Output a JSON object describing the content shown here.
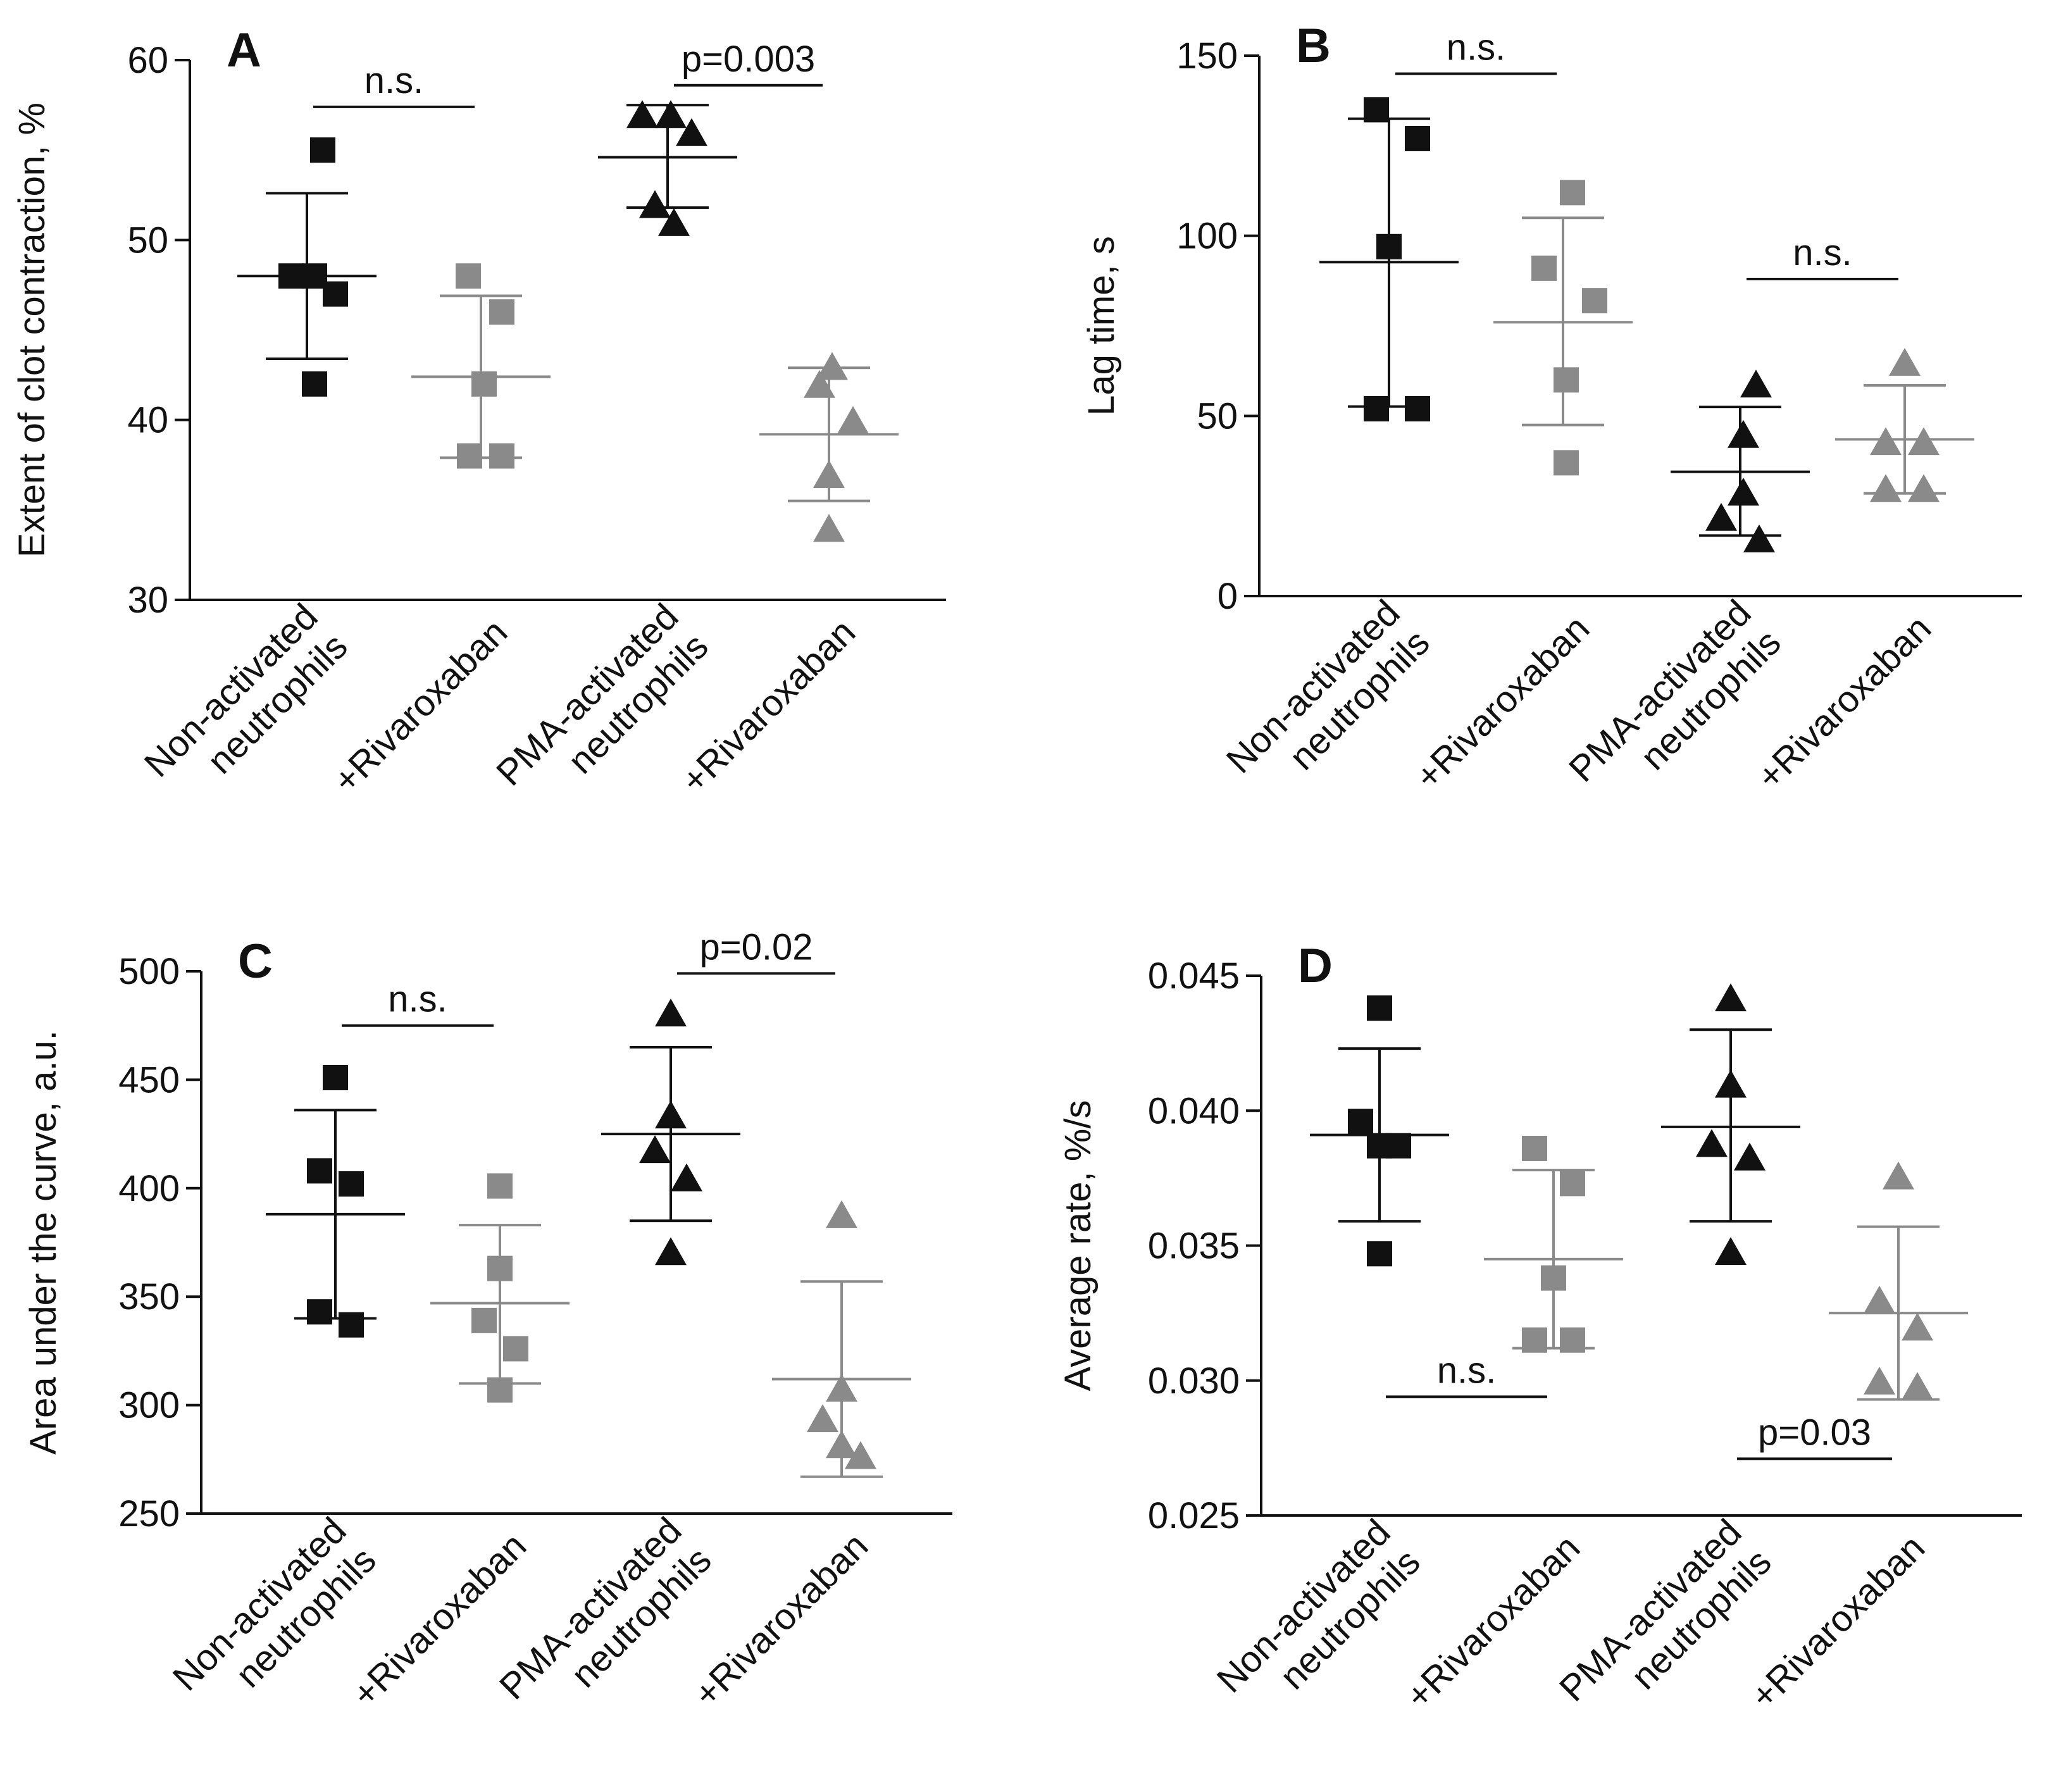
{
  "colors": {
    "black": "#111111",
    "gray": "#8a8a8a"
  },
  "chart_data": [
    {
      "type": "scatter",
      "panel_label": "A",
      "ylabel": "Extent of clot contraction, %",
      "ylim": [
        30,
        60
      ],
      "yticks": [
        "30",
        "40",
        "50",
        "60"
      ],
      "categories": [
        {
          "lines": [
            "Non-activated",
            "neutrophils"
          ],
          "color": "black",
          "marker": "square"
        },
        {
          "lines": [
            "+Rivaroxaban"
          ],
          "color": "gray",
          "marker": "square"
        },
        {
          "lines": [
            "PMA-activated",
            "neutrophils"
          ],
          "color": "black",
          "marker": "triangle"
        },
        {
          "lines": [
            "+Rivaroxaban"
          ],
          "color": "gray",
          "marker": "triangle"
        }
      ],
      "series": [
        {
          "name": "Non-activated neutrophils",
          "mean": 48,
          "sd_low": 43.4,
          "sd_high": 52.6,
          "points": [
            {
              "dx": 0.25,
              "y": 55
            },
            {
              "dx": -0.25,
              "y": 48
            },
            {
              "dx": 0.12,
              "y": 48
            },
            {
              "dx": 0.45,
              "y": 47
            },
            {
              "dx": 0.12,
              "y": 42
            }
          ]
        },
        {
          "name": "+Rivaroxaban",
          "mean": 42.4,
          "sd_low": 37.9,
          "sd_high": 46.9,
          "points": [
            {
              "dx": -0.2,
              "y": 48
            },
            {
              "dx": 0.33,
              "y": 46
            },
            {
              "dx": 0.05,
              "y": 42
            },
            {
              "dx": -0.18,
              "y": 38
            },
            {
              "dx": 0.33,
              "y": 38
            }
          ]
        },
        {
          "name": "PMA-activated neutrophils",
          "mean": 54.6,
          "sd_low": 51.8,
          "sd_high": 57.5,
          "points": [
            {
              "dx": -0.4,
              "y": 57
            },
            {
              "dx": 0.05,
              "y": 57
            },
            {
              "dx": 0.38,
              "y": 56
            },
            {
              "dx": -0.2,
              "y": 52
            },
            {
              "dx": 0.1,
              "y": 51
            }
          ]
        },
        {
          "name": "+Rivaroxaban",
          "mean": 39.2,
          "sd_low": 35.5,
          "sd_high": 42.9,
          "points": [
            {
              "dx": -0.15,
              "y": 42
            },
            {
              "dx": 0.05,
              "y": 43
            },
            {
              "dx": 0.38,
              "y": 40
            },
            {
              "dx": 0.0,
              "y": 37
            },
            {
              "dx": 0.0,
              "y": 34
            }
          ]
        }
      ],
      "comparisons": [
        {
          "label": "n.s.",
          "from": 0,
          "to": 1,
          "y": 57.4
        },
        {
          "label": "p=0.003",
          "from": 2,
          "to": 3,
          "y": 58.6
        }
      ]
    },
    {
      "type": "scatter",
      "panel_label": "B",
      "ylabel": "Lag time, s",
      "ylim": [
        0,
        150
      ],
      "yticks": [
        "0",
        "50",
        "100",
        "150"
      ],
      "categories": [
        {
          "lines": [
            "Non-activated",
            "neutrophils"
          ],
          "color": "black",
          "marker": "square"
        },
        {
          "lines": [
            "+Rivaroxaban"
          ],
          "color": "gray",
          "marker": "square"
        },
        {
          "lines": [
            "PMA-activated",
            "neutrophils"
          ],
          "color": "black",
          "marker": "triangle"
        },
        {
          "lines": [
            "+Rivaroxaban"
          ],
          "color": "gray",
          "marker": "triangle"
        }
      ],
      "series": [
        {
          "name": "Non-activated neutrophils",
          "mean": 92.7,
          "sd_low": 52.6,
          "sd_high": 132.5,
          "points": [
            {
              "dx": -0.2,
              "y": 135
            },
            {
              "dx": 0.45,
              "y": 127
            },
            {
              "dx": 0.0,
              "y": 97
            },
            {
              "dx": -0.2,
              "y": 52
            },
            {
              "dx": 0.45,
              "y": 52
            }
          ]
        },
        {
          "name": "+Rivaroxaban",
          "mean": 76,
          "sd_low": 47.5,
          "sd_high": 105,
          "points": [
            {
              "dx": 0.15,
              "y": 112
            },
            {
              "dx": -0.3,
              "y": 91
            },
            {
              "dx": 0.5,
              "y": 82
            },
            {
              "dx": 0.05,
              "y": 60
            },
            {
              "dx": 0.05,
              "y": 37
            }
          ]
        },
        {
          "name": "PMA-activated neutrophils",
          "mean": 34.5,
          "sd_low": 16.8,
          "sd_high": 52.5,
          "points": [
            {
              "dx": 0.25,
              "y": 59
            },
            {
              "dx": 0.05,
              "y": 45
            },
            {
              "dx": 0.05,
              "y": 29
            },
            {
              "dx": -0.3,
              "y": 22
            },
            {
              "dx": 0.3,
              "y": 16
            }
          ]
        },
        {
          "name": "+Rivaroxaban",
          "mean": 43.5,
          "sd_low": 28.5,
          "sd_high": 58.5,
          "points": [
            {
              "dx": 0.0,
              "y": 65
            },
            {
              "dx": -0.3,
              "y": 43
            },
            {
              "dx": 0.3,
              "y": 43
            },
            {
              "dx": -0.3,
              "y": 30
            },
            {
              "dx": 0.3,
              "y": 30
            }
          ]
        }
      ],
      "comparisons": [
        {
          "label": "n.s.",
          "from": 0,
          "to": 1,
          "y": 145
        },
        {
          "label": "n.s.",
          "from": 2,
          "to": 3,
          "y": 88
        }
      ]
    },
    {
      "type": "scatter",
      "panel_label": "C",
      "ylabel": "Area under the curve, a.u.",
      "ylim": [
        250,
        500
      ],
      "yticks": [
        "250",
        "300",
        "350",
        "400",
        "450",
        "500"
      ],
      "categories": [
        {
          "lines": [
            "Non-activated",
            "neutrophils"
          ],
          "color": "black",
          "marker": "square"
        },
        {
          "lines": [
            "+Rivaroxaban"
          ],
          "color": "gray",
          "marker": "square"
        },
        {
          "lines": [
            "PMA-activated",
            "neutrophils"
          ],
          "color": "black",
          "marker": "triangle"
        },
        {
          "lines": [
            "+Rivaroxaban"
          ],
          "color": "gray",
          "marker": "triangle"
        }
      ],
      "series": [
        {
          "name": "Non-activated neutrophils",
          "mean": 388,
          "sd_low": 340,
          "sd_high": 436,
          "points": [
            {
              "dx": 0.0,
              "y": 451
            },
            {
              "dx": -0.25,
              "y": 408
            },
            {
              "dx": 0.25,
              "y": 402
            },
            {
              "dx": -0.25,
              "y": 343
            },
            {
              "dx": 0.25,
              "y": 337
            }
          ]
        },
        {
          "name": "+Rivaroxaban",
          "mean": 347,
          "sd_low": 310,
          "sd_high": 383,
          "points": [
            {
              "dx": 0.0,
              "y": 401
            },
            {
              "dx": 0.0,
              "y": 363
            },
            {
              "dx": -0.25,
              "y": 339
            },
            {
              "dx": 0.25,
              "y": 326
            },
            {
              "dx": 0.0,
              "y": 307
            }
          ]
        },
        {
          "name": "PMA-activated neutrophils",
          "mean": 425,
          "sd_low": 385,
          "sd_high": 465,
          "points": [
            {
              "dx": 0.0,
              "y": 481
            },
            {
              "dx": 0.0,
              "y": 434
            },
            {
              "dx": -0.25,
              "y": 418
            },
            {
              "dx": 0.25,
              "y": 405
            },
            {
              "dx": 0.0,
              "y": 371
            }
          ]
        },
        {
          "name": "+Rivaroxaban",
          "mean": 312,
          "sd_low": 267,
          "sd_high": 357,
          "points": [
            {
              "dx": 0.0,
              "y": 388
            },
            {
              "dx": 0.0,
              "y": 308
            },
            {
              "dx": -0.3,
              "y": 294
            },
            {
              "dx": 0.0,
              "y": 282
            },
            {
              "dx": 0.3,
              "y": 277
            }
          ]
        }
      ],
      "comparisons": [
        {
          "label": "n.s.",
          "from": 0,
          "to": 1,
          "y": 475
        },
        {
          "label": "p=0.02",
          "from": 2,
          "to": 3,
          "y": 499
        }
      ]
    },
    {
      "type": "scatter",
      "panel_label": "D",
      "ylabel": "Average rate, %/s",
      "ylim": [
        0.025,
        0.045
      ],
      "yticks": [
        "0.025",
        "0.030",
        "0.035",
        "0.040",
        "0.045"
      ],
      "categories": [
        {
          "lines": [
            "Non-activated",
            "neutrophils"
          ],
          "color": "black",
          "marker": "square"
        },
        {
          "lines": [
            "+Rivaroxaban"
          ],
          "color": "gray",
          "marker": "square"
        },
        {
          "lines": [
            "PMA-activated",
            "neutrophils"
          ],
          "color": "black",
          "marker": "triangle"
        },
        {
          "lines": [
            "+Rivaroxaban"
          ],
          "color": "gray",
          "marker": "triangle"
        }
      ],
      "series": [
        {
          "name": "Non-activated neutrophils",
          "mean": 0.0391,
          "sd_low": 0.0359,
          "sd_high": 0.0423,
          "points": [
            {
              "dx": 0.0,
              "y": 0.0438
            },
            {
              "dx": -0.3,
              "y": 0.0396
            },
            {
              "dx": 0.0,
              "y": 0.0387
            },
            {
              "dx": 0.3,
              "y": 0.0387
            },
            {
              "dx": 0.0,
              "y": 0.0347
            }
          ]
        },
        {
          "name": "+Rivaroxaban",
          "mean": 0.0345,
          "sd_low": 0.0312,
          "sd_high": 0.0378,
          "points": [
            {
              "dx": -0.3,
              "y": 0.0386
            },
            {
              "dx": 0.3,
              "y": 0.0373
            },
            {
              "dx": 0.0,
              "y": 0.0338
            },
            {
              "dx": -0.3,
              "y": 0.0315
            },
            {
              "dx": 0.3,
              "y": 0.0315
            }
          ]
        },
        {
          "name": "PMA-activated neutrophils",
          "mean": 0.0394,
          "sd_low": 0.0359,
          "sd_high": 0.043,
          "points": [
            {
              "dx": 0.0,
              "y": 0.0442
            },
            {
              "dx": 0.0,
              "y": 0.041
            },
            {
              "dx": -0.3,
              "y": 0.0388
            },
            {
              "dx": 0.3,
              "y": 0.0383
            },
            {
              "dx": 0.0,
              "y": 0.0348
            }
          ]
        },
        {
          "name": "+Rivaroxaban",
          "mean": 0.0325,
          "sd_low": 0.0293,
          "sd_high": 0.0357,
          "points": [
            {
              "dx": 0.0,
              "y": 0.0376
            },
            {
              "dx": -0.3,
              "y": 0.033
            },
            {
              "dx": 0.3,
              "y": 0.032
            },
            {
              "dx": -0.3,
              "y": 0.03
            },
            {
              "dx": 0.3,
              "y": 0.0298
            }
          ]
        }
      ],
      "comparisons": [
        {
          "label": "n.s.",
          "from": 0,
          "to": 1,
          "y": 0.0294
        },
        {
          "label": "p=0.03",
          "from": 2,
          "to": 3,
          "y": 0.0271
        }
      ]
    }
  ]
}
